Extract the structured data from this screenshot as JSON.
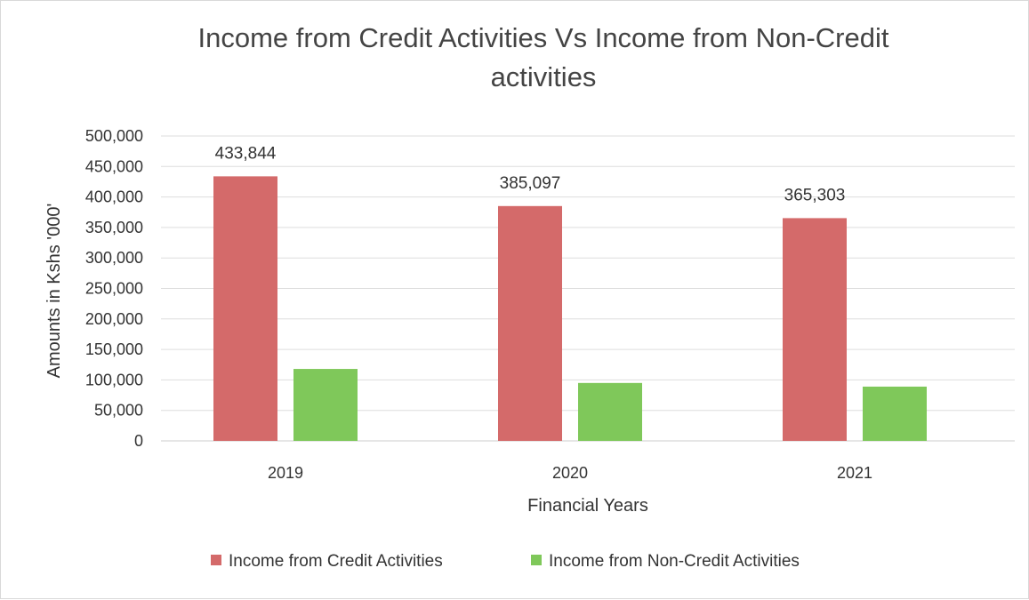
{
  "chart_data": {
    "type": "bar",
    "title_lines": [
      "Income from Credit Activities Vs Income from Non-Credit",
      "activities"
    ],
    "xlabel": "Financial Years",
    "ylabel": "Amounts in Kshs '000'",
    "categories": [
      "2019",
      "2020",
      "2021"
    ],
    "ylim": [
      0,
      500000
    ],
    "yticks": [
      0,
      50000,
      100000,
      150000,
      200000,
      250000,
      300000,
      350000,
      400000,
      450000,
      500000
    ],
    "ytick_labels": [
      "0",
      "50,000",
      "100,000",
      "150,000",
      "200,000",
      "250,000",
      "300,000",
      "350,000",
      "400,000",
      "450,000",
      "500,000"
    ],
    "series": [
      {
        "name": "Income from Credit Activities",
        "color": "#d46a6a",
        "values": [
          433844,
          385097,
          365303
        ],
        "data_labels": [
          "433,844",
          "385,097",
          "365,303"
        ]
      },
      {
        "name": "Income from Non-Credit Activities",
        "color": "#7fc85a",
        "values": [
          118000,
          95000,
          89000
        ],
        "data_labels": []
      }
    ],
    "grid": true,
    "legend_position": "bottom"
  }
}
